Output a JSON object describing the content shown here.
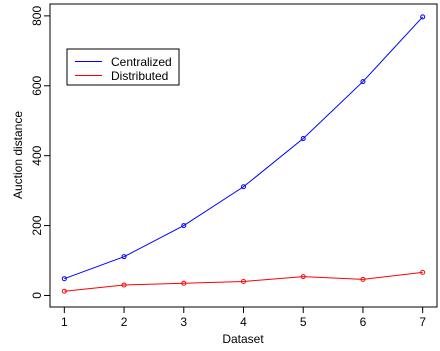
{
  "chart_data": {
    "type": "line",
    "xlabel": "Dataset",
    "ylabel": "Auction distance",
    "x": [
      1,
      2,
      3,
      4,
      5,
      6,
      7
    ],
    "xticks": [
      1,
      2,
      3,
      4,
      5,
      6,
      7
    ],
    "yticks": [
      0,
      200,
      400,
      600,
      800
    ],
    "xlim": [
      0.76,
      7.24
    ],
    "ylim": [
      -33,
      834
    ],
    "grid": false,
    "legend_position": "top-left",
    "series": [
      {
        "name": "Centralized",
        "color": "#0000ff",
        "values": [
          48,
          111,
          200,
          311,
          449,
          612,
          797
        ]
      },
      {
        "name": "Distributed",
        "color": "#ff0000",
        "values": [
          12,
          30,
          35,
          40,
          54,
          46,
          66
        ]
      }
    ]
  }
}
